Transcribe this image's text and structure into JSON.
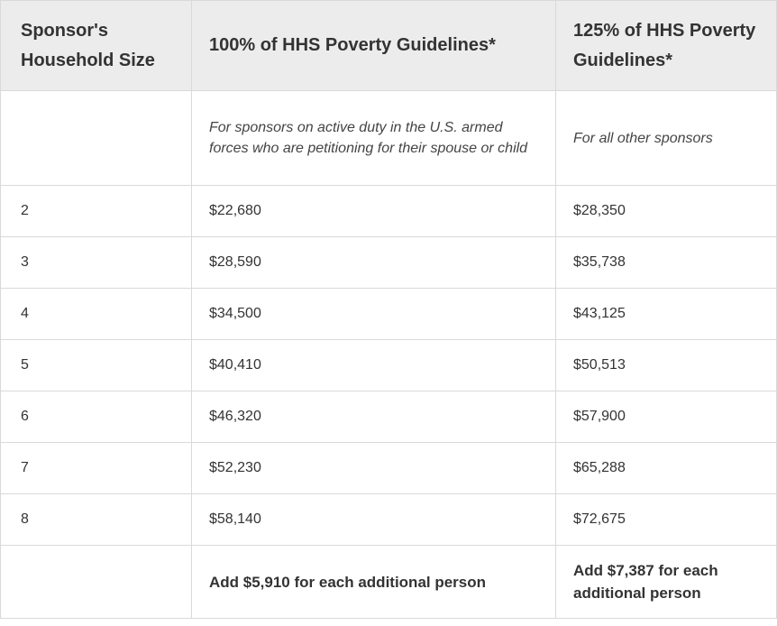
{
  "table": {
    "headers": {
      "household_size": "Sponsor's Household Size",
      "hhs_100": "100% of HHS Poverty Guidelines*",
      "hhs_125": "125% of HHS Poverty Guidelines*"
    },
    "description": {
      "household_size": "",
      "hhs_100": "For sponsors on active duty in the U.S. armed forces who are petitioning for their spouse or child",
      "hhs_125": "For all other sponsors"
    },
    "rows": [
      {
        "size": "2",
        "hhs_100": "$22,680",
        "hhs_125": "$28,350"
      },
      {
        "size": "3",
        "hhs_100": "$28,590",
        "hhs_125": "$35,738"
      },
      {
        "size": "4",
        "hhs_100": "$34,500",
        "hhs_125": "$43,125"
      },
      {
        "size": "5",
        "hhs_100": "$40,410",
        "hhs_125": "$50,513"
      },
      {
        "size": "6",
        "hhs_100": "$46,320",
        "hhs_125": "$57,900"
      },
      {
        "size": "7",
        "hhs_100": "$52,230",
        "hhs_125": "$65,288"
      },
      {
        "size": "8",
        "hhs_100": "$58,140",
        "hhs_125": "$72,675"
      }
    ],
    "footer": {
      "household_size": "",
      "hhs_100": "Add $5,910 for each additional person",
      "hhs_125": "Add $7,387 for each additional person"
    }
  },
  "colors": {
    "header_background": "#ececec",
    "border": "#d9d9d9",
    "text": "#333333"
  }
}
